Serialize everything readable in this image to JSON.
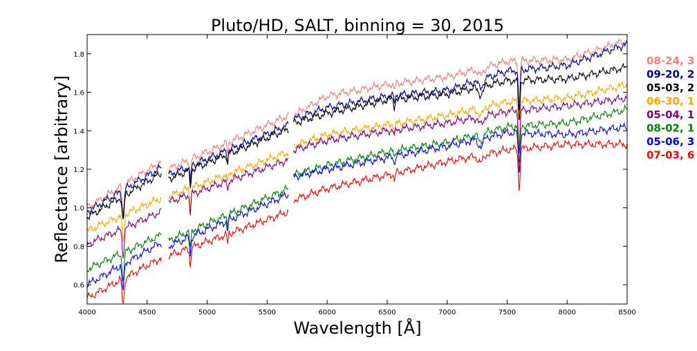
{
  "chart_data": {
    "type": "line",
    "title": "Pluto/HD, SALT, binning = 30, 2015",
    "xlabel": "Wavelength [Å]",
    "ylabel": "Reflectance [arbitrary]",
    "xlim": [
      4000,
      8500
    ],
    "ylim": [
      0.5,
      1.9
    ],
    "xticks": [
      4000,
      4500,
      5000,
      5500,
      6000,
      6500,
      7000,
      7500,
      8000,
      8500
    ],
    "yticks": [
      0.6,
      0.8,
      1.0,
      1.2,
      1.4,
      1.6,
      1.8
    ],
    "grid": false,
    "legend_position": "right, outside plot (clipped)",
    "segments": [
      [
        4000,
        4620
      ],
      [
        4680,
        5680
      ],
      [
        5720,
        8500
      ]
    ],
    "series": [
      {
        "name": "08-24, 3",
        "color": "#f08080",
        "values": [
          [
            4000,
            1.0
          ],
          [
            4620,
            1.24
          ],
          [
            4680,
            1.2
          ],
          [
            5680,
            1.48
          ],
          [
            5720,
            1.48
          ],
          [
            6000,
            1.58
          ],
          [
            6500,
            1.64
          ],
          [
            7000,
            1.68
          ],
          [
            7500,
            1.76
          ],
          [
            8000,
            1.77
          ],
          [
            8500,
            1.87
          ]
        ]
      },
      {
        "name": "09-20, 2",
        "color": "#00008b",
        "values": [
          [
            4000,
            0.98
          ],
          [
            4620,
            1.21
          ],
          [
            4680,
            1.17
          ],
          [
            5680,
            1.43
          ],
          [
            5720,
            1.46
          ],
          [
            6000,
            1.52
          ],
          [
            6500,
            1.58
          ],
          [
            7000,
            1.61
          ],
          [
            7500,
            1.71
          ],
          [
            8000,
            1.74
          ],
          [
            8500,
            1.85
          ]
        ]
      },
      {
        "name": "05-03, 2",
        "color": "#000000",
        "values": [
          [
            4000,
            0.95
          ],
          [
            4620,
            1.18
          ],
          [
            4680,
            1.15
          ],
          [
            5680,
            1.41
          ],
          [
            5720,
            1.44
          ],
          [
            6000,
            1.49
          ],
          [
            6500,
            1.56
          ],
          [
            7000,
            1.59
          ],
          [
            7500,
            1.66
          ],
          [
            8000,
            1.67
          ],
          [
            8500,
            1.73
          ]
        ]
      },
      {
        "name": "06-30, 1",
        "color": "#ffa500",
        "values": [
          [
            4000,
            0.88
          ],
          [
            4620,
            1.05
          ],
          [
            4680,
            1.06
          ],
          [
            5680,
            1.29
          ],
          [
            5720,
            1.32
          ],
          [
            6000,
            1.38
          ],
          [
            6500,
            1.43
          ],
          [
            7000,
            1.48
          ],
          [
            7500,
            1.55
          ],
          [
            8000,
            1.57
          ],
          [
            8500,
            1.64
          ]
        ]
      },
      {
        "name": "05-04, 1",
        "color": "#800080",
        "values": [
          [
            4000,
            0.81
          ],
          [
            4620,
            0.98
          ],
          [
            4680,
            1.03
          ],
          [
            5680,
            1.25
          ],
          [
            5720,
            1.3
          ],
          [
            6000,
            1.35
          ],
          [
            6500,
            1.4
          ],
          [
            7000,
            1.44
          ],
          [
            7500,
            1.5
          ],
          [
            8000,
            1.53
          ],
          [
            8500,
            1.57
          ]
        ]
      },
      {
        "name": "08-02, 1",
        "color": "#008000",
        "values": [
          [
            4000,
            0.68
          ],
          [
            4620,
            0.86
          ],
          [
            4680,
            0.83
          ],
          [
            5680,
            1.1
          ],
          [
            5720,
            1.17
          ],
          [
            6000,
            1.22
          ],
          [
            6500,
            1.29
          ],
          [
            7000,
            1.34
          ],
          [
            7500,
            1.42
          ],
          [
            8000,
            1.44
          ],
          [
            8500,
            1.51
          ]
        ]
      },
      {
        "name": "05-06, 3",
        "color": "#0000ff",
        "values": [
          [
            4000,
            0.6
          ],
          [
            4620,
            0.82
          ],
          [
            4680,
            0.8
          ],
          [
            5680,
            1.07
          ],
          [
            5720,
            1.16
          ],
          [
            6000,
            1.2
          ],
          [
            6500,
            1.26
          ],
          [
            7000,
            1.32
          ],
          [
            7500,
            1.39
          ],
          [
            8000,
            1.38
          ],
          [
            8500,
            1.42
          ]
        ]
      },
      {
        "name": "07-03, 6",
        "color": "#ff0000",
        "values": [
          [
            4000,
            0.53
          ],
          [
            4620,
            0.74
          ],
          [
            4680,
            0.75
          ],
          [
            5680,
            0.98
          ],
          [
            5720,
            1.04
          ],
          [
            6000,
            1.1
          ],
          [
            6500,
            1.17
          ],
          [
            7000,
            1.24
          ],
          [
            7500,
            1.3
          ],
          [
            8000,
            1.33
          ],
          [
            8500,
            1.33
          ]
        ]
      }
    ]
  }
}
